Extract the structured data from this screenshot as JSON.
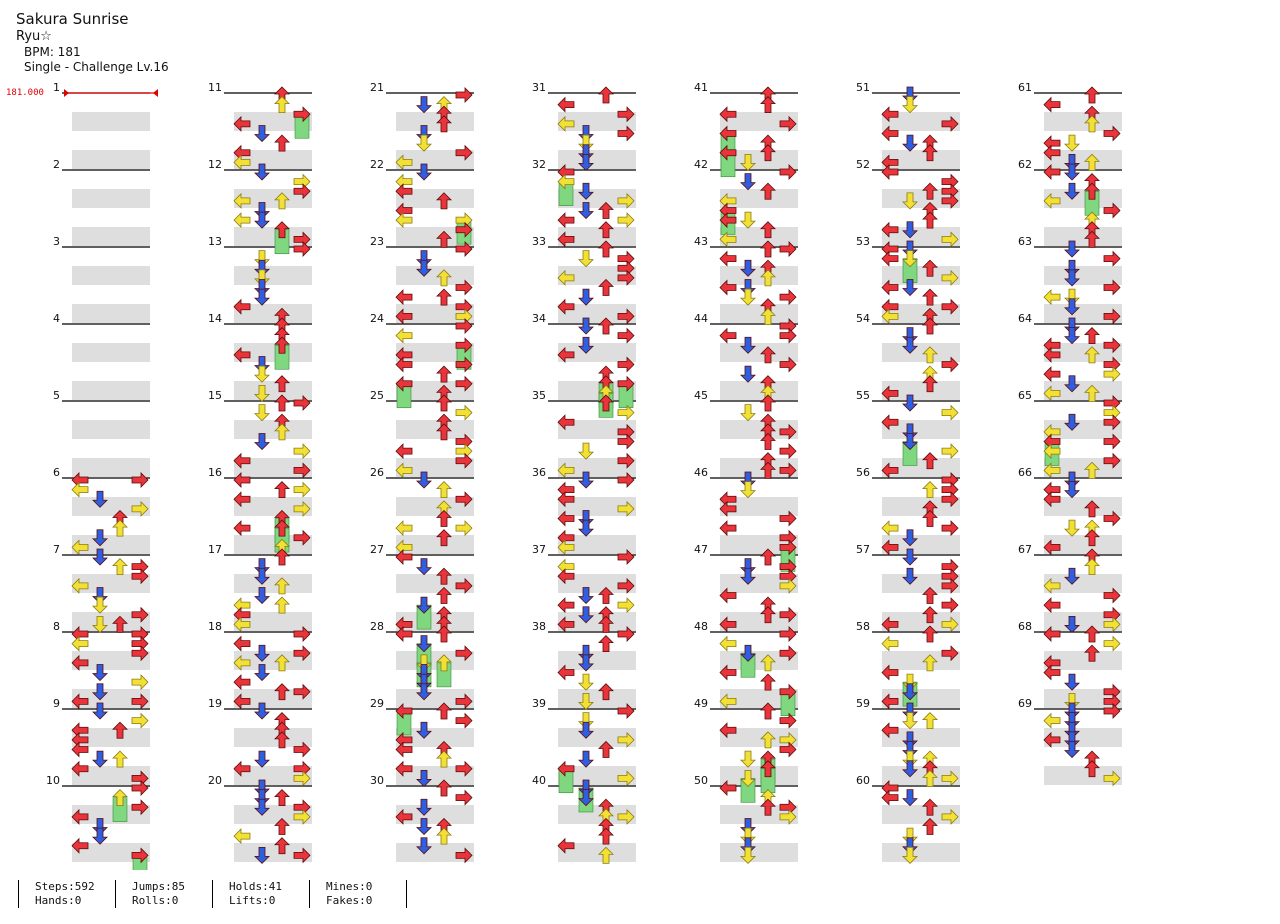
{
  "header": {
    "title": "Sakura Sunrise",
    "artist": "Ryu☆",
    "bpm_text": "BPM: 181",
    "difficulty_text": "Single - Challenge Lv.16"
  },
  "bpm_marker": {
    "label": "181.000",
    "measure": 1
  },
  "layout": {
    "measures_per_column": 10,
    "total_measures": 69,
    "column_measure_starts": [
      1,
      11,
      21,
      31,
      41,
      51,
      61
    ]
  },
  "colors": {
    "left_arrow": "#e8343a",
    "down_arrow": "#2f5fe0",
    "up_arrow": "#e8343a",
    "right_arrow": "#e8343a",
    "sixteenth_arrow": "#f2e035",
    "hold_body": "#7fd77f",
    "lane_band": "#dedede",
    "bpm_marker": "#e00000"
  },
  "measure_numbers": [
    "1",
    "2",
    "3",
    "4",
    "5",
    "6",
    "7",
    "8",
    "9",
    "10",
    "11",
    "12",
    "13",
    "14",
    "15",
    "16",
    "17",
    "18",
    "19",
    "20",
    "21",
    "22",
    "23",
    "24",
    "25",
    "26",
    "27",
    "28",
    "29",
    "30",
    "31",
    "32",
    "33",
    "34",
    "35",
    "36",
    "37",
    "38",
    "39",
    "40",
    "41",
    "42",
    "43",
    "44",
    "45",
    "46",
    "47",
    "48",
    "49",
    "50",
    "51",
    "52",
    "53",
    "54",
    "55",
    "56",
    "57",
    "58",
    "59",
    "60",
    "61",
    "62",
    "63",
    "64",
    "65",
    "66",
    "67",
    "68",
    "69"
  ],
  "stats": {
    "steps": "Steps:592",
    "hands": "Hands:0",
    "jumps": "Jumps:85",
    "rolls": "Rolls:0",
    "holds": "Holds:41",
    "lifts": "Lifts:0",
    "mines": "Mines:0",
    "fakes": "Fakes:0"
  }
}
